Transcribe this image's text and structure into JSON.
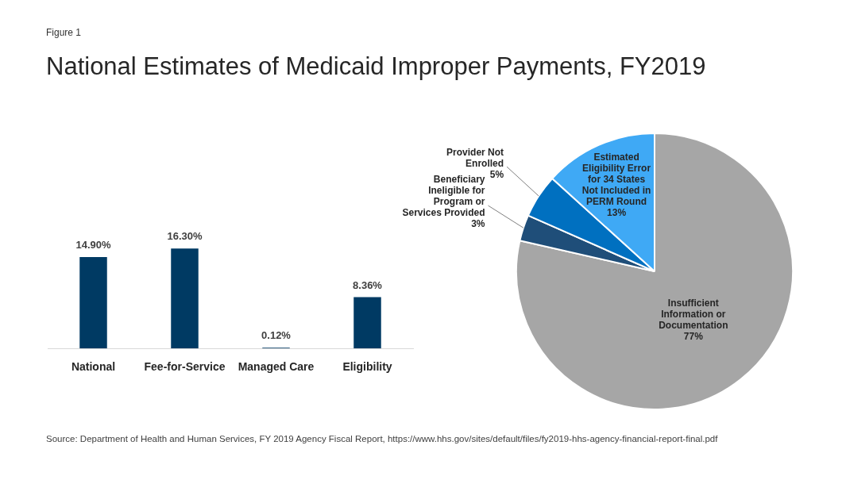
{
  "chart_data": [
    {
      "type": "bar",
      "title": "National Estimates of Medicaid Improper Payments, FY2019",
      "categories": [
        "National",
        "Fee-for-Service",
        "Managed Care",
        "Eligibility"
      ],
      "values": [
        14.9,
        16.3,
        0.12,
        8.36
      ],
      "color": "#003a63",
      "value_labels": [
        "14.90%",
        "16.30%",
        "0.12%",
        "8.36%"
      ],
      "annotations": [
        "Figure 1",
        "Source: Department of Health and Human Services, FY 2019 Agency Fiscal Report, https://www.hhs.gov/sites/default/files/fy2019-hhs-agency-financial-report-final.pdf"
      ]
    },
    {
      "type": "pie",
      "categories": [
        "Insufficient Information or Documentation",
        "Beneficiary Ineligible for Program or Services Provided",
        "Provider Not Enrolled",
        "Estimated Eligibility Error for 34 States Not Included in PERM Round"
      ],
      "values": [
        77,
        3,
        5,
        13
      ],
      "colors": [
        "#a6a6a6",
        "#1f4e79",
        "#0070c0",
        "#3fa9f5"
      ],
      "value_labels": [
        "77%",
        "3%",
        "5%",
        "13%"
      ]
    }
  ]
}
